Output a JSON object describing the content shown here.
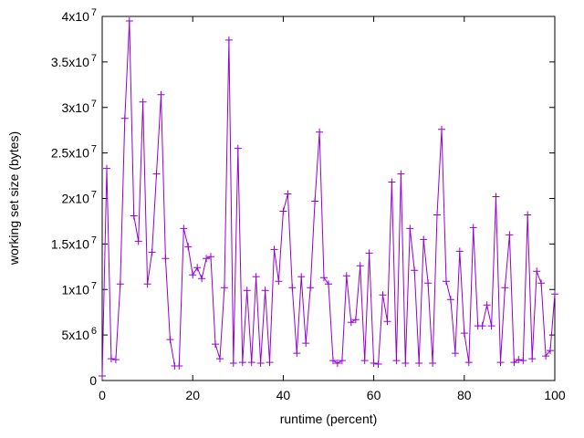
{
  "chart_data": {
    "type": "line",
    "title": "",
    "xlabel": "runtime (percent)",
    "ylabel": "working set size (bytes)",
    "xlim": [
      0,
      100
    ],
    "ylim": [
      0,
      40000000
    ],
    "grid": false,
    "legend": null,
    "background_color": "#ffffff",
    "axis_color": "#000000",
    "line_color": "#9400D3",
    "marker": "plus",
    "xticks": [
      {
        "value": 0,
        "label": "0"
      },
      {
        "value": 20,
        "label": "20"
      },
      {
        "value": 40,
        "label": "40"
      },
      {
        "value": 60,
        "label": "60"
      },
      {
        "value": 80,
        "label": "80"
      },
      {
        "value": 100,
        "label": "100"
      }
    ],
    "yticks": [
      {
        "value": 0,
        "mantissa": "0",
        "exponent": ""
      },
      {
        "value": 5000000,
        "mantissa": "5x10",
        "exponent": "6"
      },
      {
        "value": 10000000,
        "mantissa": "1x10",
        "exponent": "7"
      },
      {
        "value": 15000000,
        "mantissa": "1.5x10",
        "exponent": "7"
      },
      {
        "value": 20000000,
        "mantissa": "2x10",
        "exponent": "7"
      },
      {
        "value": 25000000,
        "mantissa": "2.5x10",
        "exponent": "7"
      },
      {
        "value": 30000000,
        "mantissa": "3x10",
        "exponent": "7"
      },
      {
        "value": 35000000,
        "mantissa": "3.5x10",
        "exponent": "7"
      },
      {
        "value": 40000000,
        "mantissa": "4x10",
        "exponent": "7"
      }
    ],
    "series": [
      {
        "name": "working set size",
        "x": [
          0,
          1,
          2,
          3,
          4,
          5,
          6,
          7,
          8,
          9,
          10,
          11,
          12,
          13,
          14,
          15,
          16,
          17,
          18,
          19,
          20,
          21,
          22,
          23,
          24,
          25,
          26,
          27,
          28,
          29,
          30,
          31,
          32,
          33,
          34,
          35,
          36,
          37,
          38,
          39,
          40,
          41,
          42,
          43,
          44,
          45,
          46,
          47,
          48,
          49,
          50,
          51,
          52,
          53,
          54,
          55,
          56,
          57,
          58,
          59,
          60,
          61,
          62,
          63,
          64,
          65,
          66,
          67,
          68,
          69,
          70,
          71,
          72,
          73,
          74,
          75,
          76,
          77,
          78,
          79,
          80,
          81,
          82,
          83,
          84,
          85,
          86,
          87,
          88,
          89,
          90,
          91,
          92,
          93,
          94,
          95,
          96,
          97,
          98,
          99,
          100
        ],
        "y": [
          500000,
          23300000,
          2400000,
          2300000,
          10600000,
          28800000,
          39500000,
          18100000,
          15300000,
          30600000,
          10600000,
          14100000,
          22700000,
          31400000,
          13400000,
          4500000,
          1600000,
          1600000,
          16700000,
          14700000,
          11600000,
          12400000,
          11200000,
          13400000,
          13600000,
          4000000,
          2400000,
          10200000,
          37400000,
          1900000,
          25500000,
          2000000,
          9900000,
          2000000,
          11400000,
          1900000,
          9900000,
          2000000,
          14400000,
          10900000,
          18600000,
          20500000,
          10200000,
          3000000,
          11400000,
          4100000,
          10200000,
          19700000,
          27300000,
          11300000,
          10600000,
          2200000,
          1900000,
          2200000,
          11500000,
          6400000,
          6700000,
          12600000,
          2200000,
          14000000,
          1900000,
          1800000,
          9400000,
          6500000,
          21800000,
          2200000,
          22700000,
          1900000,
          16700000,
          12100000,
          1900000,
          15500000,
          10700000,
          1900000,
          18200000,
          27600000,
          10900000,
          8900000,
          3000000,
          14200000,
          5200000,
          2000000,
          16800000,
          6000000,
          6000000,
          8300000,
          6000000,
          20200000,
          2000000,
          10200000,
          16000000,
          2000000,
          2300000,
          2200000,
          18200000,
          2400000,
          12000000,
          10700000,
          2700000,
          3300000,
          9500000
        ]
      }
    ]
  }
}
